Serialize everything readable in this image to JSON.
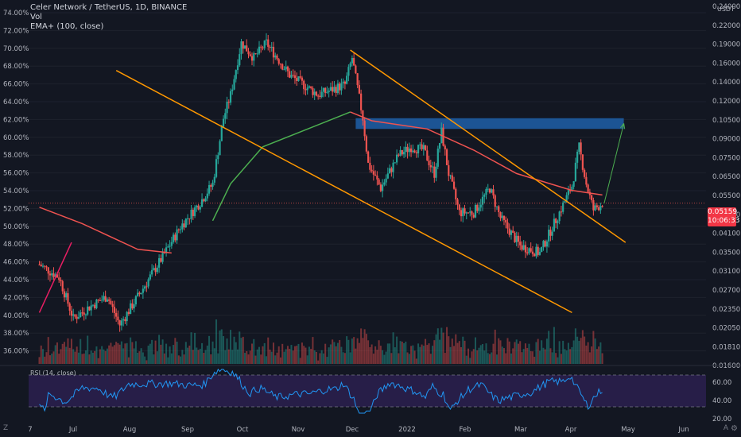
{
  "header": {
    "symbol_line": "Celer Network / TetherUS, 1D, BINANCE",
    "vol_label": "Vol",
    "ema_label": "EMA+ (100, close)"
  },
  "rsi": {
    "label": "RSI (14, close)",
    "ticks": [
      "60.00",
      "40.00",
      "20.00"
    ]
  },
  "price_badge": {
    "price": "0.05159",
    "countdown": "10:06:33"
  },
  "axis_corner": {
    "left": "Z",
    "right": "A"
  },
  "colors": {
    "background": "#131722",
    "up": "#26a69a",
    "down": "#ef5350",
    "ema": "#4caf50",
    "ema2": "#ef5350",
    "channel": "#ff9800",
    "support": "#e91e63",
    "resistance_box": "#1f5fa8",
    "arrow": "#4caf50",
    "rsi_line": "#2196f3",
    "rsi_band": "#2a1f4d"
  },
  "chart_data": {
    "type": "candlestick",
    "title": "Celer Network / TetherUS, 1D, BINANCE",
    "left_axis_labels": [
      "74.00%",
      "72.00%",
      "70.00%",
      "68.00%",
      "66.00%",
      "64.00%",
      "62.00%",
      "60.00%",
      "58.00%",
      "56.00%",
      "54.00%",
      "52.00%",
      "50.00%",
      "48.00%",
      "46.00%",
      "44.00%",
      "42.00%",
      "40.00%",
      "38.00%",
      "36.00%"
    ],
    "right_axis_labels": [
      "0.24000",
      "0.22000",
      "0.19000",
      "0.16000",
      "0.14000",
      "0.12000",
      "0.10500",
      "0.09000",
      "0.07500",
      "0.06500",
      "0.05500",
      "0.04800",
      "0.04100",
      "0.03500",
      "0.03100",
      "0.02700",
      "0.02350",
      "0.02050",
      "0.01810",
      "0.01600"
    ],
    "right_axis_unit": "USDT",
    "x_labels": [
      "7",
      "Jul",
      "Aug",
      "Sep",
      "Oct",
      "Nov",
      "Dec",
      "2022",
      "Feb",
      "Mar",
      "Apr",
      "May",
      "Jun"
    ],
    "price_knots": [
      {
        "x": "Jun 7",
        "y": 0.032
      },
      {
        "x": "Jun 18",
        "y": 0.029
      },
      {
        "x": "Jun 26",
        "y": 0.021
      },
      {
        "x": "Jul 5",
        "y": 0.023
      },
      {
        "x": "Jul 15",
        "y": 0.025
      },
      {
        "x": "Jul 22",
        "y": 0.02
      },
      {
        "x": "Aug 3",
        "y": 0.026
      },
      {
        "x": "Aug 15",
        "y": 0.034
      },
      {
        "x": "Aug 25",
        "y": 0.043
      },
      {
        "x": "Sep 5",
        "y": 0.052
      },
      {
        "x": "Sep 12",
        "y": 0.06
      },
      {
        "x": "Sep 18",
        "y": 0.1
      },
      {
        "x": "Sep 22",
        "y": 0.12
      },
      {
        "x": "Sep 28",
        "y": 0.18
      },
      {
        "x": "Oct 5",
        "y": 0.16
      },
      {
        "x": "Oct 12",
        "y": 0.18
      },
      {
        "x": "Oct 25",
        "y": 0.14
      },
      {
        "x": "Nov 10",
        "y": 0.12
      },
      {
        "x": "Nov 25",
        "y": 0.13
      },
      {
        "x": "Nov 29",
        "y": 0.16
      },
      {
        "x": "Dec 5",
        "y": 0.1
      },
      {
        "x": "Dec 8",
        "y": 0.07
      },
      {
        "x": "Dec 15",
        "y": 0.058
      },
      {
        "x": "Dec 25",
        "y": 0.075
      },
      {
        "x": "Jan 1",
        "y": 0.08
      },
      {
        "x": "Jan 8",
        "y": 0.078
      },
      {
        "x": "Jan 14",
        "y": 0.065
      },
      {
        "x": "Jan 18",
        "y": 0.09
      },
      {
        "x": "Jan 22",
        "y": 0.065
      },
      {
        "x": "Jan 28",
        "y": 0.048
      },
      {
        "x": "Feb 5",
        "y": 0.048
      },
      {
        "x": "Feb 14",
        "y": 0.058
      },
      {
        "x": "Feb 20",
        "y": 0.046
      },
      {
        "x": "Mar 3",
        "y": 0.037
      },
      {
        "x": "Mar 14",
        "y": 0.035
      },
      {
        "x": "Mar 25",
        "y": 0.048
      },
      {
        "x": "Apr 1",
        "y": 0.059
      },
      {
        "x": "Apr 5",
        "y": 0.08
      },
      {
        "x": "Apr 9",
        "y": 0.06
      },
      {
        "x": "Apr 13",
        "y": 0.049
      },
      {
        "x": "Apr 18",
        "y": 0.05159
      }
    ],
    "ema_100": [
      {
        "x": "Sep 12",
        "y": 0.045
      },
      {
        "x": "Sep 22",
        "y": 0.06
      },
      {
        "x": "Oct 10",
        "y": 0.08
      },
      {
        "x": "Nov 10",
        "y": 0.095
      },
      {
        "x": "Nov 28",
        "y": 0.105
      },
      {
        "x": "Dec 10",
        "y": 0.098
      },
      {
        "x": "Jan 10",
        "y": 0.092
      },
      {
        "x": "Feb 5",
        "y": 0.078
      },
      {
        "x": "Mar 1",
        "y": 0.065
      },
      {
        "x": "Apr 1",
        "y": 0.057
      },
      {
        "x": "Apr 18",
        "y": 0.055
      }
    ],
    "ema_long": [
      {
        "x": "Jun 7",
        "y": 0.05
      },
      {
        "x": "Jul 1",
        "y": 0.044
      },
      {
        "x": "Aug 1",
        "y": 0.036
      },
      {
        "x": "Aug 20",
        "y": 0.035
      }
    ],
    "resistance_zone": {
      "x_start": "Dec 1",
      "x_end": "Apr 30",
      "y_low": 0.092,
      "y_high": 0.1
    },
    "channel_upper": [
      {
        "x": "Nov 28",
        "y": 0.17
      },
      {
        "x": "May 1",
        "y": 0.038
      }
    ],
    "channel_lower": [
      {
        "x": "Jul 20",
        "y": 0.145
      },
      {
        "x": "Apr 1",
        "y": 0.022
      }
    ],
    "support_line": [
      {
        "x": "Jun 7",
        "y": 0.022
      },
      {
        "x": "Jun 25",
        "y": 0.038
      }
    ],
    "projection_arrow": [
      {
        "x": "Apr 19",
        "y": 0.0515
      },
      {
        "x": "Apr 30",
        "y": 0.096
      }
    ],
    "rsi_ylim": [
      20,
      80
    ],
    "rsi_bands": [
      30,
      70
    ]
  }
}
